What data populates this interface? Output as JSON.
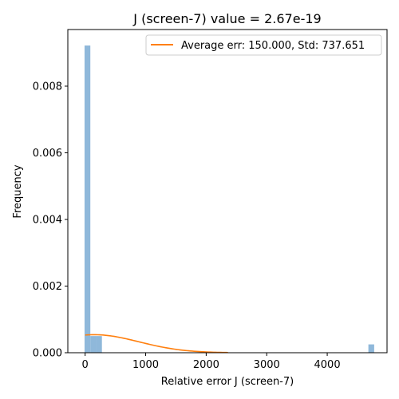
{
  "chart_data": {
    "type": "bar",
    "title": "J (screen-7) value = 2.67e-19",
    "xlabel": "Relative error J (screen-7)",
    "ylabel": "Frequency",
    "xlim": [
      -286,
      4988
    ],
    "ylim": [
      0,
      0.0097
    ],
    "x_ticks": [
      0,
      1000,
      2000,
      3000,
      4000
    ],
    "x_tick_labels": [
      "0",
      "1000",
      "2000",
      "3000",
      "4000"
    ],
    "y_ticks": [
      0,
      0.002,
      0.004,
      0.006,
      0.008
    ],
    "y_tick_labels": [
      "0.000",
      "0.002",
      "0.004",
      "0.006",
      "0.008"
    ],
    "bar_color": "#8fb8da",
    "line_color": "#ff7f0e",
    "histogram": {
      "bin_width": 95.7,
      "bins": [
        {
          "x0": -9.8,
          "height": 0.00922
        },
        {
          "x0": 85.9,
          "height": 0.0005
        },
        {
          "x0": 181.6,
          "height": 0.0005
        },
        {
          "x0": 4680,
          "height": 0.00025
        }
      ]
    },
    "series": [
      {
        "name": "Average err: 150.000, Std: 737.651",
        "type": "line",
        "mean": 150.0,
        "std": 737.651,
        "x_range": [
          0,
          2360
        ],
        "scale": 1.0
      }
    ],
    "legend": {
      "position": "top-right",
      "entries": [
        "Average err: 150.000, Std: 737.651"
      ]
    }
  }
}
